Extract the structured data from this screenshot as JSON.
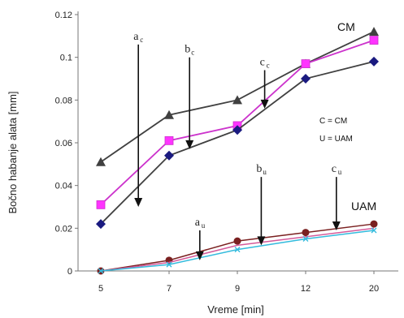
{
  "chart_data": {
    "type": "line",
    "xlabel": "Vreme [min]",
    "ylabel": "Bočno habanje alata [mm]",
    "categories": [
      "5",
      "7",
      "9",
      "12",
      "20"
    ],
    "ylim": [
      0,
      0.12
    ],
    "yticks": [
      "0",
      "0.02",
      "0.04",
      "0.06",
      "0.08",
      "0.1",
      "0.12"
    ],
    "grid": false,
    "colors": {
      "cm_dark": "#404040",
      "cm_pink": "#cc33cc",
      "uam_dark": "#7a2020",
      "uam_pink": "#d45a9a",
      "uam_cyan": "#33bbdd",
      "axis": "#777777",
      "arrow": "#111111"
    },
    "series": [
      {
        "marker": "triangle",
        "values": [
          0.051,
          0.073,
          0.08,
          0.097,
          0.112
        ]
      },
      {
        "marker": "square",
        "values": [
          0.031,
          0.061,
          0.068,
          0.097,
          0.108
        ]
      },
      {
        "marker": "diamond",
        "values": [
          0.022,
          0.054,
          0.066,
          0.09,
          0.098
        ]
      },
      {
        "marker": "circle",
        "values": [
          0.0,
          0.005,
          0.014,
          0.018,
          0.022
        ]
      },
      {
        "marker": "none",
        "values": [
          0.0,
          0.004,
          0.012,
          0.016,
          0.02
        ]
      },
      {
        "marker": "x",
        "values": [
          0.0,
          0.003,
          0.01,
          0.015,
          0.019
        ]
      }
    ],
    "series_labels": [
      {
        "text": "CM"
      },
      {
        "text": "UAM"
      }
    ],
    "legend_note": [
      "C = CM",
      "U =  UAM"
    ],
    "annotations": [
      {
        "label": "a",
        "sub": "c",
        "x": 0.55,
        "y_from": 0.106,
        "y_to": 0.03
      },
      {
        "label": "b",
        "sub": "c",
        "x": 1.3,
        "y_from": 0.1,
        "y_to": 0.057
      },
      {
        "label": "c",
        "sub": "c",
        "x": 2.4,
        "y_from": 0.094,
        "y_to": 0.076
      },
      {
        "label": "a",
        "sub": "u",
        "x": 1.45,
        "y_from": 0.019,
        "y_to": 0.005
      },
      {
        "label": "b",
        "sub": "u",
        "x": 2.35,
        "y_from": 0.044,
        "y_to": 0.012
      },
      {
        "label": "c",
        "sub": "u",
        "x": 3.45,
        "y_from": 0.044,
        "y_to": 0.019
      }
    ]
  }
}
